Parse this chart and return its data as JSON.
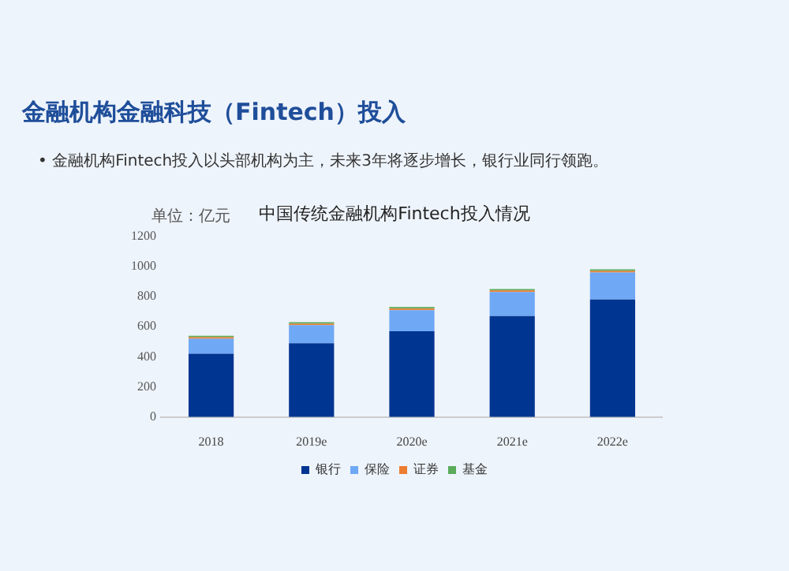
{
  "chart_data": {
    "type": "bar",
    "title": "金融机构金融科技（Fintech）投入",
    "subtitle": "中国传统金融机构Fintech投入情况",
    "ylabel": "单位：亿元",
    "annotations": [
      "•  金融机构Fintech投入以头部机构为主，未来3年将逐步增长，银行业同行领跑。"
    ],
    "categories": [
      "2018",
      "2019e",
      "2020e",
      "2021e",
      "2022e"
    ],
    "series": [
      {
        "name": "银行",
        "color": "#003591",
        "values": [
          420,
          490,
          570,
          670,
          780
        ]
      },
      {
        "name": "保险",
        "color": "#6fa8f5",
        "values": [
          100,
          120,
          140,
          160,
          180
        ]
      },
      {
        "name": "证券",
        "color": "#ed7d31",
        "values": [
          10,
          10,
          10,
          10,
          10
        ]
      },
      {
        "name": "基金",
        "color": "#5aab5a",
        "values": [
          10,
          10,
          10,
          10,
          10
        ]
      }
    ],
    "stacked": true,
    "ylim": [
      0,
      1200
    ],
    "yticks": [
      0,
      200,
      400,
      600,
      800,
      1000,
      1200
    ],
    "grid": false,
    "legend": "bottom"
  }
}
